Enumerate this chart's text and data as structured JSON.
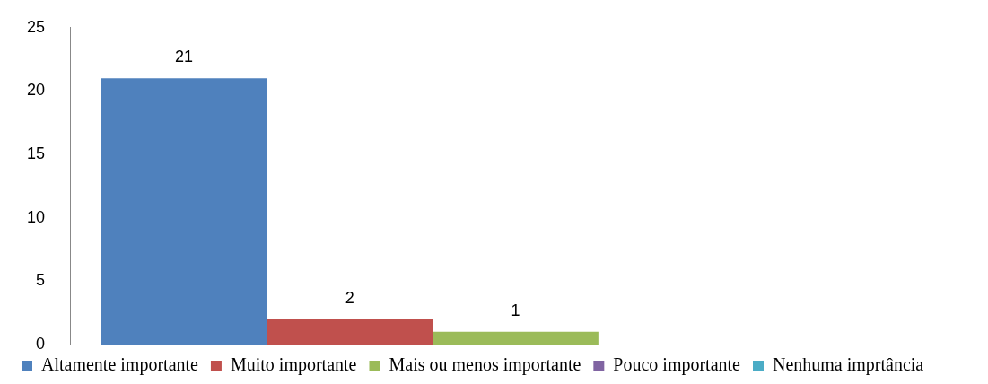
{
  "chart_data": {
    "type": "bar",
    "categories": [
      null
    ],
    "series": [
      {
        "name": "Altamente importante",
        "color": "#4f81bd",
        "values": [
          21
        ]
      },
      {
        "name": "Muito importante",
        "color": "#c0504d",
        "values": [
          2
        ]
      },
      {
        "name": "Mais ou menos importante",
        "color": "#9bbb59",
        "values": [
          1
        ]
      },
      {
        "name": "Pouco importante",
        "color": "#8064a2",
        "values": [
          null
        ]
      },
      {
        "name": "Nenhuma imprtância",
        "color": "#4bacc6",
        "values": [
          null
        ]
      }
    ],
    "ylim": [
      0,
      25
    ],
    "yticks": [
      0,
      5,
      10,
      15,
      20,
      25
    ],
    "grid": false,
    "legend": "bottom",
    "data_labels": true
  }
}
